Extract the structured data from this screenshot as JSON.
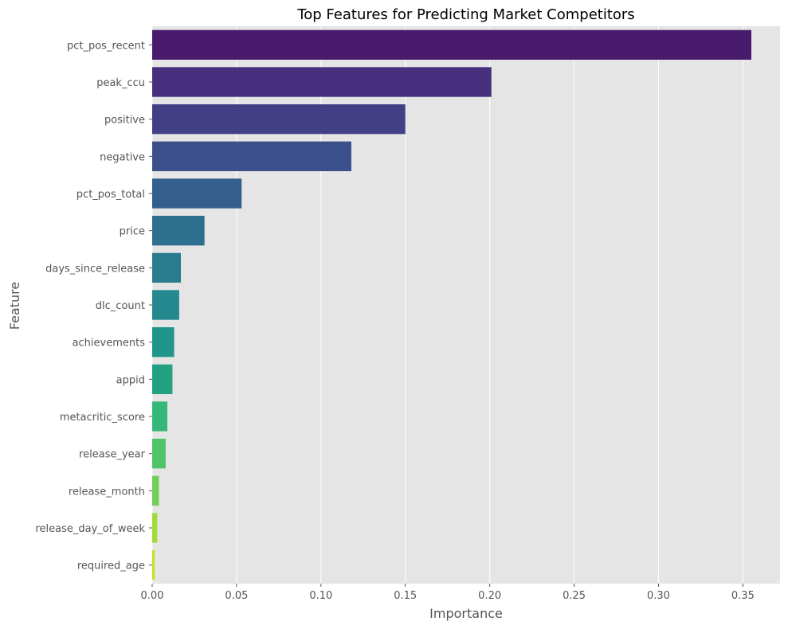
{
  "chart_data": {
    "type": "bar",
    "orientation": "horizontal",
    "title": "Top Features for Predicting Market Competitors",
    "xlabel": "Importance",
    "ylabel": "Feature",
    "xlim": [
      0,
      0.372
    ],
    "xticks": [
      "0.00",
      "0.05",
      "0.10",
      "0.15",
      "0.20",
      "0.25",
      "0.30",
      "0.35"
    ],
    "grid": true,
    "categories": [
      "pct_pos_recent",
      "peak_ccu",
      "positive",
      "negative",
      "pct_pos_total",
      "price",
      "days_since_release",
      "dlc_count",
      "achievements",
      "appid",
      "metacritic_score",
      "release_year",
      "release_month",
      "release_day_of_week",
      "required_age"
    ],
    "values": [
      0.355,
      0.201,
      0.15,
      0.118,
      0.053,
      0.031,
      0.017,
      0.016,
      0.013,
      0.012,
      0.009,
      0.008,
      0.004,
      0.003,
      0.0015
    ],
    "colors": [
      "#481b6d",
      "#472f7d",
      "#423f85",
      "#3b4f8a",
      "#345f8d",
      "#2e6e8e",
      "#297b8e",
      "#24888e",
      "#1f958b",
      "#23a283",
      "#35b778",
      "#4fc46a",
      "#71cf57",
      "#a2da37",
      "#c8e020"
    ]
  }
}
